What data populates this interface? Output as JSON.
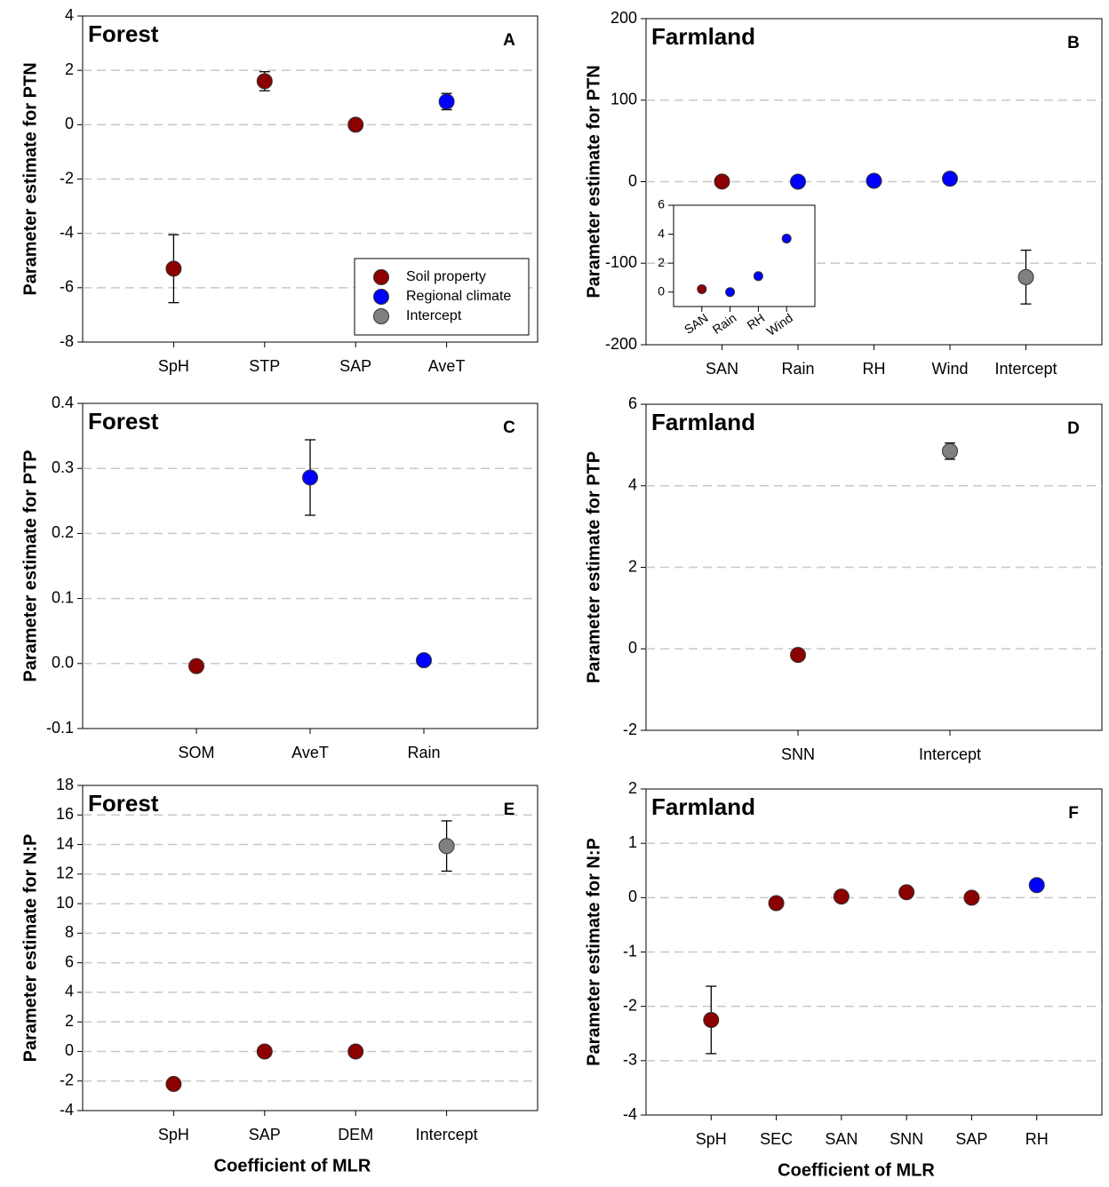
{
  "chart_data": [
    {
      "type": "errorbar",
      "title": "Forest",
      "panel": "A",
      "ylabel": "Parameter estimate for PTN",
      "categories": [
        "SpH",
        "STP",
        "SAP",
        "AveT"
      ],
      "values": [
        -5.3,
        1.6,
        0,
        0.85
      ],
      "errors": [
        1.25,
        0.35,
        0,
        0.3
      ],
      "colors": [
        "#8b0000",
        "#8b0000",
        "#8b0000",
        "#0000ff"
      ],
      "ylim": [
        -8,
        4
      ],
      "yticks": [
        -8,
        -6,
        -4,
        -2,
        0,
        2,
        4
      ],
      "grid": true,
      "legend": [
        {
          "name": "Soil property",
          "color": "#8b0000"
        },
        {
          "name": "Regional climate",
          "color": "#0000ff"
        },
        {
          "name": "Intercept",
          "color": "#808080"
        }
      ],
      "legend_position": "lower right"
    },
    {
      "type": "errorbar",
      "title": "Farmland",
      "panel": "B",
      "ylabel": "Parameter estimate for PTN",
      "categories": [
        "SAN",
        "Rain",
        "RH",
        "Wind",
        "Intercept"
      ],
      "values": [
        0.2,
        0,
        1.1,
        3.7,
        -117
      ],
      "errors": [
        0,
        0,
        0,
        0.2,
        33
      ],
      "colors": [
        "#8b0000",
        "#0000ff",
        "#0000ff",
        "#0000ff",
        "#808080"
      ],
      "ylim": [
        -200,
        200
      ],
      "yticks": [
        -200,
        -100,
        0,
        100,
        200
      ],
      "grid": true
    },
    {
      "type": "errorbar",
      "inset_of": 1,
      "categories": [
        "SAN",
        "Rain",
        "RH",
        "Wind"
      ],
      "values": [
        0.2,
        0,
        1.1,
        3.7
      ],
      "errors": [
        0,
        0,
        0,
        0.2
      ],
      "colors": [
        "#8b0000",
        "#0000ff",
        "#0000ff",
        "#0000ff"
      ],
      "ylim": [
        -1,
        6
      ],
      "yticks": [
        0,
        2,
        4,
        6
      ],
      "grid": false
    },
    {
      "type": "errorbar",
      "title": "Forest",
      "panel": "C",
      "ylabel": "Parameter estimate for PTP",
      "categories": [
        "SOM",
        "AveT",
        "Rain"
      ],
      "values": [
        -0.004,
        0.286,
        0.005
      ],
      "errors": [
        0,
        0.058,
        0
      ],
      "colors": [
        "#8b0000",
        "#0000ff",
        "#0000ff"
      ],
      "ylim": [
        -0.1,
        0.4
      ],
      "yticks": [
        -0.1,
        {
          "value": 0,
          "label": "0.0"
        },
        0.1,
        0.2,
        0.3,
        0.4
      ],
      "grid": true
    },
    {
      "type": "errorbar",
      "title": "Farmland",
      "panel": "D",
      "ylabel": "Parameter estimate for PTP",
      "categories": [
        "SNN",
        "Intercept"
      ],
      "values": [
        -0.15,
        4.85
      ],
      "errors": [
        0.05,
        0.2
      ],
      "colors": [
        "#8b0000",
        "#808080"
      ],
      "ylim": [
        -2,
        6
      ],
      "yticks": [
        -2,
        0,
        2,
        4,
        6
      ],
      "grid": true
    },
    {
      "type": "errorbar",
      "title": "Forest",
      "panel": "E",
      "ylabel": "Parameter estimate for N:P",
      "xlabel": "Coefficient of MLR",
      "categories": [
        "SpH",
        "SAP",
        "DEM",
        "Intercept"
      ],
      "values": [
        -2.2,
        0,
        0,
        13.9
      ],
      "errors": [
        0.1,
        0,
        0,
        1.7
      ],
      "colors": [
        "#8b0000",
        "#8b0000",
        "#8b0000",
        "#808080"
      ],
      "ylim": [
        -4,
        18
      ],
      "yticks": [
        -4,
        -2,
        0,
        2,
        4,
        6,
        8,
        10,
        12,
        14,
        16,
        18
      ],
      "grid": true
    },
    {
      "type": "errorbar",
      "title": "Farmland",
      "panel": "F",
      "ylabel": "Parameter estimate for N:P",
      "xlabel": "Coefficient of MLR",
      "categories": [
        "SpH",
        "SEC",
        "SAN",
        "SNN",
        "SAP",
        "RH"
      ],
      "values": [
        -2.25,
        -0.1,
        0.02,
        0.1,
        0,
        0.23
      ],
      "errors": [
        0.62,
        0,
        0,
        0,
        0,
        0
      ],
      "colors": [
        "#8b0000",
        "#8b0000",
        "#8b0000",
        "#8b0000",
        "#8b0000",
        "#0000ff"
      ],
      "ylim": [
        -4,
        2
      ],
      "yticks": [
        -4,
        -3,
        -2,
        -1,
        0,
        1,
        2
      ],
      "grid": true
    }
  ]
}
